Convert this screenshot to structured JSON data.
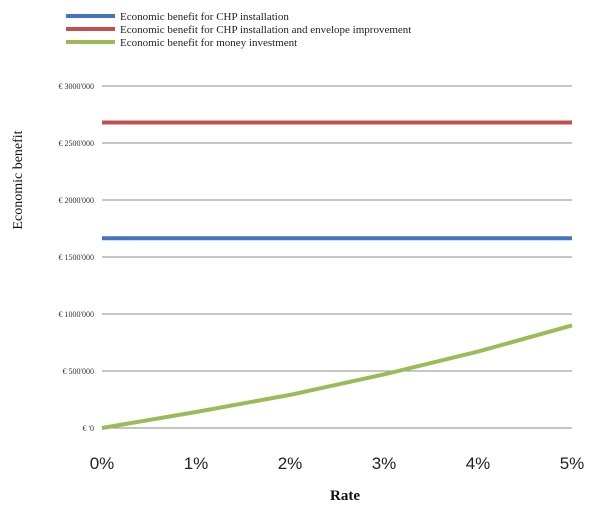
{
  "chart_data": {
    "type": "line",
    "xlabel": "Rate",
    "ylabel": "Economic benefit",
    "x": [
      "0%",
      "1%",
      "2%",
      "3%",
      "4%",
      "5%"
    ],
    "x_values": [
      0,
      1,
      2,
      3,
      4,
      5
    ],
    "ylim": [
      0,
      3000000
    ],
    "yticks": [
      {
        "value": 0,
        "label": "€ '0"
      },
      {
        "value": 500000,
        "label": "€ 500'000"
      },
      {
        "value": 1000000,
        "label": "€ 1000'000"
      },
      {
        "value": 1500000,
        "label": "€ 1500'000"
      },
      {
        "value": 2000000,
        "label": "€ 2000'000"
      },
      {
        "value": 2500000,
        "label": "€ 2500'000"
      },
      {
        "value": 3000000,
        "label": "€ 3000'000"
      }
    ],
    "grid": "horizontal",
    "legend_position": "top-left",
    "series": [
      {
        "name": "Economic benefit for CHP installation",
        "color": "#4472C4",
        "values": [
          1665000,
          1665000,
          1665000,
          1665000,
          1665000,
          1665000
        ]
      },
      {
        "name": "Economic benefit for CHP installation and envelope improvement",
        "color": "#C0504D",
        "values": [
          2680000,
          2680000,
          2680000,
          2680000,
          2680000,
          2680000
        ]
      },
      {
        "name": "Economic benefit for  money investment",
        "color": "#9BBB59",
        "values": [
          0,
          140000,
          290000,
          470000,
          670000,
          900000
        ]
      }
    ]
  }
}
